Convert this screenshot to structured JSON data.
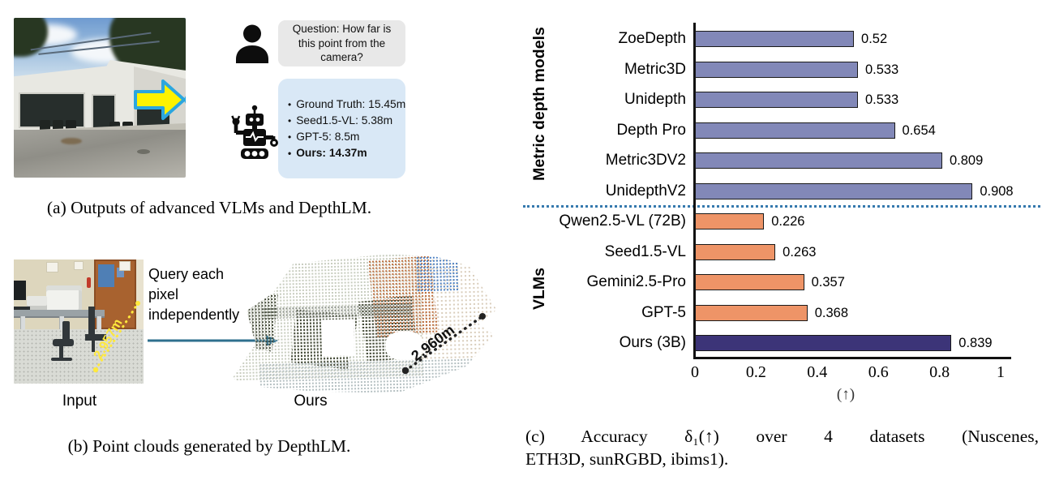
{
  "panel_a": {
    "caption": "(a) Outputs of advanced VLMs and DepthLM.",
    "question_bubble": "Question: How far is this point from the camera?",
    "bullet": "•",
    "answers": [
      {
        "text": "Ground Truth: 15.45m",
        "emphasis": false
      },
      {
        "text": "Seed1.5-VL: 5.38m",
        "emphasis": false
      },
      {
        "text": "GPT-5: 8.5m",
        "emphasis": false
      },
      {
        "text": "Ours: 14.37m",
        "emphasis": true
      }
    ]
  },
  "panel_b": {
    "caption": "(b) Point clouds generated by DepthLM.",
    "arrow_text": "Query each pixel independently",
    "input_label": "Input",
    "output_label": "Ours",
    "input_measurement": "2.957m",
    "output_measurement": "2.960m"
  },
  "panel_c": {
    "caption_line1": "(c) Accuracy δ₁(↑) over 4 datasets (Nuscenes,",
    "caption_line2": "ETH3D, sunRGBD, ibims1)."
  },
  "chart_data": {
    "type": "bar",
    "orientation": "horizontal",
    "categories": [
      "ZoeDepth",
      "Metric3D",
      "Unidepth",
      "Depth Pro",
      "Metric3DV2",
      "UnidepthV2",
      "Qwen2.5-VL (72B)",
      "Seed1.5-VL",
      "Gemini2.5-Pro",
      "GPT-5",
      "Ours (3B)"
    ],
    "values": [
      0.52,
      0.533,
      0.533,
      0.654,
      0.809,
      0.908,
      0.226,
      0.263,
      0.357,
      0.368,
      0.839
    ],
    "value_labels": [
      "0.52",
      "0.533",
      "0.533",
      "0.654",
      "0.809",
      "0.908",
      "0.226",
      "0.263",
      "0.357",
      "0.368",
      "0.839"
    ],
    "groups": [
      "metric",
      "metric",
      "metric",
      "metric",
      "metric",
      "metric",
      "vlm",
      "vlm",
      "vlm",
      "vlm",
      "ours"
    ],
    "group_labels": {
      "metric": "Metric depth models",
      "vlm": "VLMs"
    },
    "colors": {
      "metric": "#8288B8",
      "vlm": "#EE9467",
      "ours": "#3C3478"
    },
    "separator_color": "#3579AE",
    "xlabel": "(↑)",
    "xticks": [
      0,
      0.2,
      0.4,
      0.6,
      0.8,
      1
    ],
    "xtick_labels": [
      "0",
      "0.2",
      "0.4",
      "0.6",
      "0.8",
      "1"
    ],
    "xlim": [
      0,
      1
    ],
    "grid": false,
    "legend": "none"
  }
}
